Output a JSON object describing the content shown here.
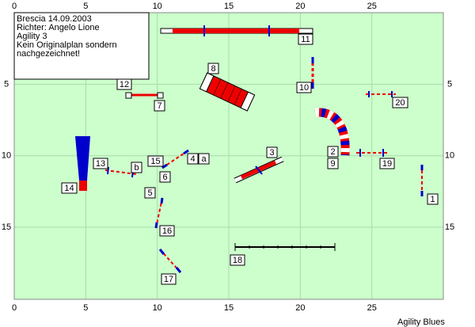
{
  "header": {
    "lines": [
      "Brescia 14.09.2003",
      "Richter: Angelo Lione",
      "Agility 3",
      "Kein Originalplan sondern",
      "nachgezeichnet!"
    ]
  },
  "axis": {
    "x_labels": [
      "0",
      "5",
      "10",
      "15",
      "20",
      "25"
    ],
    "y_labels": [
      "5",
      "10",
      "15"
    ]
  },
  "obstacles": {
    "labels": [
      "1",
      "2",
      "3",
      "4",
      "5",
      "6",
      "7",
      "8",
      "9",
      "10",
      "11",
      "12",
      "13",
      "14",
      "15",
      "16",
      "17",
      "18",
      "19",
      "20",
      "a",
      "b"
    ]
  },
  "footer": "Agility Blues"
}
